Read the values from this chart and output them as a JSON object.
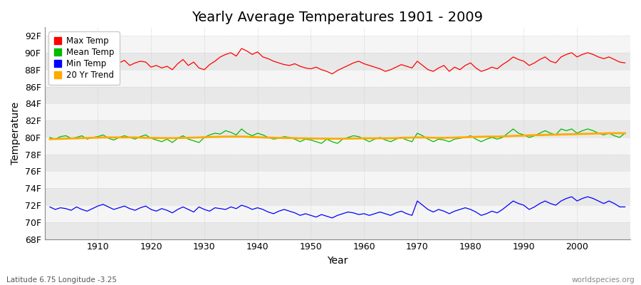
{
  "title": "Yearly Average Temperatures 1901 - 2009",
  "xlabel": "Year",
  "ylabel": "Temperature",
  "footer_left": "Latitude 6.75 Longitude -3.25",
  "footer_right": "worldspecies.org",
  "years": [
    1901,
    1902,
    1903,
    1904,
    1905,
    1906,
    1907,
    1908,
    1909,
    1910,
    1911,
    1912,
    1913,
    1914,
    1915,
    1916,
    1917,
    1918,
    1919,
    1920,
    1921,
    1922,
    1923,
    1924,
    1925,
    1926,
    1927,
    1928,
    1929,
    1930,
    1931,
    1932,
    1933,
    1934,
    1935,
    1936,
    1937,
    1938,
    1939,
    1940,
    1941,
    1942,
    1943,
    1944,
    1945,
    1946,
    1947,
    1948,
    1949,
    1950,
    1951,
    1952,
    1953,
    1954,
    1955,
    1956,
    1957,
    1958,
    1959,
    1960,
    1961,
    1962,
    1963,
    1964,
    1965,
    1966,
    1967,
    1968,
    1969,
    1970,
    1971,
    1972,
    1973,
    1974,
    1975,
    1976,
    1977,
    1978,
    1979,
    1980,
    1981,
    1982,
    1983,
    1984,
    1985,
    1986,
    1987,
    1988,
    1989,
    1990,
    1991,
    1992,
    1993,
    1994,
    1995,
    1996,
    1997,
    1998,
    1999,
    2000,
    2001,
    2002,
    2003,
    2004,
    2005,
    2006,
    2007,
    2008,
    2009
  ],
  "max_temp": [
    88.0,
    88.2,
    88.5,
    88.3,
    88.4,
    88.6,
    88.1,
    88.3,
    88.5,
    88.7,
    88.9,
    89.0,
    88.6,
    88.8,
    89.1,
    88.5,
    88.8,
    89.0,
    88.9,
    88.3,
    88.5,
    88.2,
    88.4,
    88.0,
    88.7,
    89.2,
    88.5,
    88.9,
    88.2,
    88.0,
    88.6,
    89.0,
    89.5,
    89.8,
    90.0,
    89.6,
    90.5,
    90.2,
    89.8,
    90.1,
    89.5,
    89.3,
    89.0,
    88.8,
    88.6,
    88.5,
    88.7,
    88.4,
    88.2,
    88.1,
    88.3,
    88.0,
    87.8,
    87.5,
    87.9,
    88.2,
    88.5,
    88.8,
    89.0,
    88.7,
    88.5,
    88.3,
    88.1,
    87.8,
    88.0,
    88.3,
    88.6,
    88.4,
    88.2,
    89.0,
    88.5,
    88.0,
    87.8,
    88.2,
    88.5,
    87.8,
    88.3,
    88.0,
    88.5,
    88.8,
    88.2,
    87.8,
    88.0,
    88.3,
    88.1,
    88.6,
    89.0,
    89.5,
    89.2,
    89.0,
    88.5,
    88.8,
    89.2,
    89.5,
    89.0,
    88.8,
    89.5,
    89.8,
    90.0,
    89.5,
    89.8,
    90.0,
    89.8,
    89.5,
    89.3,
    89.5,
    89.2,
    88.9,
    88.8
  ],
  "mean_temp": [
    80.0,
    79.8,
    80.1,
    80.2,
    79.9,
    80.0,
    80.2,
    79.8,
    80.0,
    80.1,
    80.3,
    79.9,
    79.7,
    80.0,
    80.2,
    80.0,
    79.8,
    80.1,
    80.3,
    79.9,
    79.7,
    79.5,
    79.8,
    79.4,
    79.9,
    80.2,
    79.8,
    79.6,
    79.4,
    80.0,
    80.3,
    80.5,
    80.4,
    80.8,
    80.6,
    80.3,
    81.0,
    80.5,
    80.2,
    80.5,
    80.3,
    80.0,
    79.8,
    79.9,
    80.1,
    80.0,
    79.8,
    79.5,
    79.8,
    79.7,
    79.5,
    79.3,
    79.8,
    79.5,
    79.3,
    79.8,
    80.0,
    80.2,
    80.1,
    79.8,
    79.5,
    79.8,
    80.0,
    79.7,
    79.5,
    79.8,
    80.0,
    79.7,
    79.5,
    80.5,
    80.2,
    79.8,
    79.5,
    79.8,
    79.7,
    79.5,
    79.8,
    79.9,
    80.0,
    80.2,
    79.8,
    79.5,
    79.8,
    80.0,
    79.8,
    80.0,
    80.5,
    81.0,
    80.5,
    80.3,
    80.0,
    80.2,
    80.5,
    80.8,
    80.5,
    80.3,
    81.0,
    80.8,
    81.0,
    80.5,
    80.8,
    81.0,
    80.8,
    80.5,
    80.3,
    80.5,
    80.2,
    80.0,
    80.5
  ],
  "min_temp": [
    71.8,
    71.5,
    71.7,
    71.6,
    71.4,
    71.8,
    71.5,
    71.3,
    71.6,
    71.9,
    72.1,
    71.8,
    71.5,
    71.7,
    71.9,
    71.6,
    71.4,
    71.7,
    71.9,
    71.5,
    71.3,
    71.6,
    71.4,
    71.1,
    71.5,
    71.8,
    71.5,
    71.2,
    71.8,
    71.5,
    71.3,
    71.7,
    71.6,
    71.5,
    71.8,
    71.6,
    72.0,
    71.8,
    71.5,
    71.7,
    71.5,
    71.2,
    71.0,
    71.3,
    71.5,
    71.3,
    71.1,
    70.8,
    71.0,
    70.8,
    70.6,
    70.9,
    70.7,
    70.5,
    70.8,
    71.0,
    71.2,
    71.1,
    70.9,
    71.0,
    70.8,
    71.0,
    71.2,
    71.0,
    70.8,
    71.1,
    71.3,
    71.0,
    70.8,
    72.5,
    72.0,
    71.5,
    71.2,
    71.5,
    71.3,
    71.0,
    71.3,
    71.5,
    71.7,
    71.5,
    71.2,
    70.8,
    71.0,
    71.3,
    71.1,
    71.5,
    72.0,
    72.5,
    72.2,
    72.0,
    71.5,
    71.8,
    72.2,
    72.5,
    72.2,
    72.0,
    72.5,
    72.8,
    73.0,
    72.5,
    72.8,
    73.0,
    72.8,
    72.5,
    72.2,
    72.5,
    72.2,
    71.8,
    71.8
  ],
  "trend": [
    79.8,
    79.82,
    79.84,
    79.86,
    79.88,
    79.9,
    79.92,
    79.94,
    79.96,
    79.98,
    80.0,
    80.0,
    80.0,
    80.0,
    80.0,
    80.0,
    80.0,
    79.98,
    79.96,
    79.95,
    79.94,
    79.93,
    79.92,
    79.92,
    79.93,
    79.95,
    79.97,
    79.98,
    80.0,
    80.02,
    80.05,
    80.07,
    80.08,
    80.1,
    80.1,
    80.1,
    80.1,
    80.08,
    80.05,
    80.03,
    80.0,
    79.98,
    79.96,
    79.95,
    79.94,
    79.93,
    79.92,
    79.9,
    79.9,
    79.88,
    79.87,
    79.86,
    79.86,
    79.85,
    79.85,
    79.85,
    79.86,
    79.87,
    79.88,
    79.9,
    79.9,
    79.9,
    79.9,
    79.9,
    79.9,
    79.92,
    79.95,
    79.97,
    79.98,
    80.0,
    80.0,
    79.98,
    79.96,
    79.95,
    79.95,
    79.97,
    79.98,
    80.0,
    80.02,
    80.05,
    80.07,
    80.08,
    80.1,
    80.1,
    80.1,
    80.12,
    80.15,
    80.18,
    80.2,
    80.22,
    80.25,
    80.27,
    80.28,
    80.3,
    80.32,
    80.33,
    80.35,
    80.37,
    80.38,
    80.4,
    80.42,
    80.43,
    80.45,
    80.47,
    80.48,
    80.5,
    80.5,
    80.5,
    80.5
  ],
  "ylim": [
    68,
    93
  ],
  "yticks": [
    68,
    70,
    72,
    74,
    76,
    78,
    80,
    82,
    84,
    86,
    88,
    90,
    92
  ],
  "ytick_labels": [
    "68F",
    "70F",
    "72F",
    "74F",
    "76F",
    "78F",
    "80F",
    "82F",
    "84F",
    "86F",
    "88F",
    "90F",
    "92F"
  ],
  "xticks": [
    1910,
    1920,
    1930,
    1940,
    1950,
    1960,
    1970,
    1980,
    1990,
    2000
  ],
  "bg_color": "#ffffff",
  "plot_bg": "#ffffff",
  "band_light": "#f5f5f5",
  "band_dark": "#e8e8e8",
  "max_color": "#ff0000",
  "mean_color": "#00bb00",
  "min_color": "#0000ff",
  "trend_color": "#ffaa00",
  "grid_color": "#cccccc",
  "title_fontsize": 14,
  "axis_fontsize": 10,
  "tick_fontsize": 9,
  "legend_marker_colors": [
    "#ff0000",
    "#00bb00",
    "#0000ff",
    "#ffaa00"
  ]
}
